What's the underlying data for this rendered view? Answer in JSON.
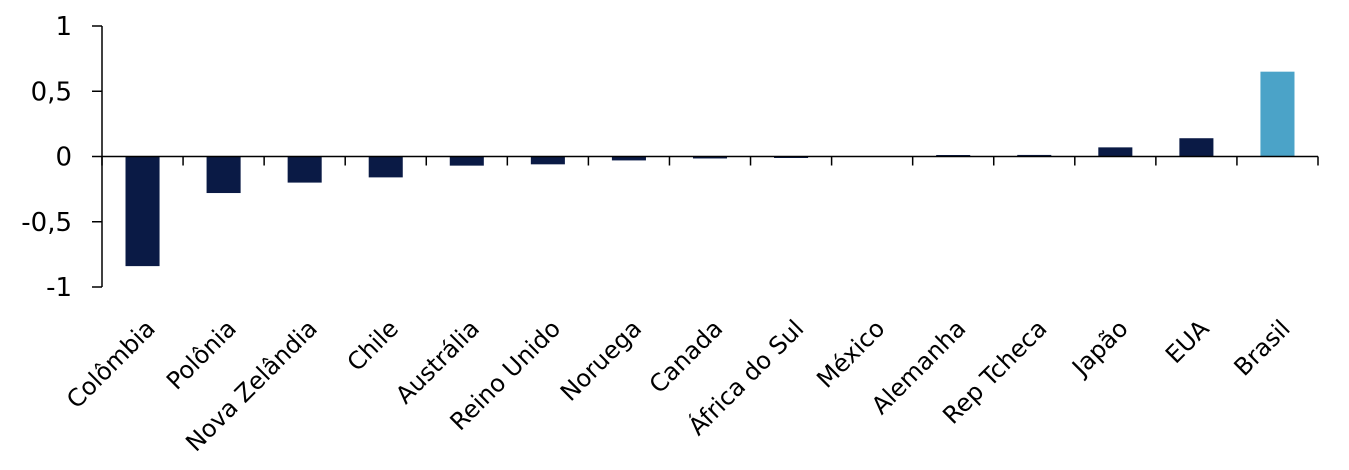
{
  "chart_data": {
    "type": "bar",
    "title": "",
    "xlabel": "",
    "ylabel": "",
    "ylim": [
      -1,
      1
    ],
    "yticks": [
      1,
      0.5,
      0,
      -0.5,
      -1
    ],
    "ytick_labels": [
      "1",
      "0,5",
      "0",
      "-0,5",
      "-1"
    ],
    "grid": false,
    "categories": [
      "Colômbia",
      "Polônia",
      "Nova Zelândia",
      "Chile",
      "Austrália",
      "Reino Unido",
      "Noruega",
      "Canada",
      "África do Sul",
      "México",
      "Alemanha",
      "Rep Tcheca",
      "Japão",
      "EUA",
      "Brasil"
    ],
    "values": [
      -0.84,
      -0.28,
      -0.2,
      -0.16,
      -0.07,
      -0.06,
      -0.03,
      -0.015,
      -0.008,
      0,
      0.01,
      0.012,
      0.07,
      0.14,
      0.65
    ],
    "colors": {
      "default": "#0a1a45",
      "highlight": "#4ba3c8"
    },
    "highlight_category": "Brasil"
  }
}
